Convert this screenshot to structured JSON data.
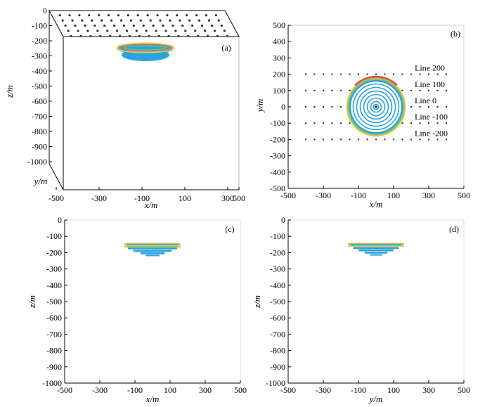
{
  "chart_data": [
    {
      "id": "a",
      "type": "scatter",
      "panel_label": "(a)",
      "description": "3D view: station grid on top surface, magnetized body near z=-200",
      "zlabel": "z/m",
      "xlabel": "x/m",
      "ylabel": "y/m",
      "z_ticks": [
        "0",
        "-100",
        "-200",
        "-300",
        "-400",
        "-500",
        "-600",
        "-700",
        "-800",
        "-900",
        "-1000"
      ],
      "x_ticks": [
        "-500",
        "-300",
        "-100",
        "100",
        "300",
        "500"
      ],
      "x_tick_positions": [
        -500,
        -300,
        -100,
        100,
        300,
        500
      ],
      "zlim": [
        -1000,
        0
      ],
      "body_depth_range": [
        -280,
        -150
      ],
      "station_rows": 5,
      "station_cols": 17
    },
    {
      "id": "b",
      "type": "scatter",
      "panel_label": "(b)",
      "description": "Plan view with survey lines and concentric body contours",
      "xlabel": "x/m",
      "ylabel": "y/m",
      "xlim": [
        -500,
        500
      ],
      "ylim": [
        -500,
        500
      ],
      "x_ticks": [
        "-500",
        "-300",
        "-100",
        "100",
        "300",
        "500"
      ],
      "x_tick_positions": [
        -500,
        -300,
        -100,
        100,
        300,
        500
      ],
      "y_ticks": [
        "500",
        "400",
        "300",
        "200",
        "100",
        "0",
        "-100",
        "-200",
        "-300",
        "-400",
        "-500"
      ],
      "y_tick_positions": [
        500,
        400,
        300,
        200,
        100,
        0,
        -100,
        -200,
        -300,
        -400,
        -500
      ],
      "lines": [
        {
          "name": "Line 200",
          "y": 200
        },
        {
          "name": "Line 100",
          "y": 100
        },
        {
          "name": "Line 0",
          "y": 0
        },
        {
          "name": "Line -100",
          "y": -100
        },
        {
          "name": "Line -200",
          "y": -200
        }
      ],
      "station_x_range": [
        -400,
        400
      ],
      "station_spacing": 50,
      "body_center": [
        0,
        0
      ],
      "body_radius": 170,
      "contour_radii": [
        15,
        30,
        50,
        70,
        90,
        110,
        130,
        150
      ]
    },
    {
      "id": "c",
      "type": "area",
      "panel_label": "(c)",
      "description": "Vertical section in x-z plane",
      "xlabel": "x/m",
      "ylabel": "z/m",
      "xlim": [
        -500,
        500
      ],
      "ylim": [
        -1000,
        0
      ],
      "x_ticks": [
        "-500",
        "-300",
        "-100",
        "100",
        "300",
        "500"
      ],
      "x_tick_positions": [
        -500,
        -300,
        -100,
        100,
        300,
        500
      ],
      "y_ticks": [
        "0",
        "-100",
        "-200",
        "-300",
        "-400",
        "-500",
        "-600",
        "-700",
        "-800",
        "-900",
        "-1000"
      ],
      "y_tick_positions": [
        0,
        -100,
        -200,
        -300,
        -400,
        -500,
        -600,
        -700,
        -800,
        -900,
        -1000
      ],
      "layers": [
        {
          "x": [
            -160,
            160
          ],
          "z": [
            -170,
            -140
          ],
          "color": "#e8c85a"
        },
        {
          "x": [
            -140,
            140
          ],
          "z": [
            -180,
            -168
          ],
          "color": "#29a3dc"
        },
        {
          "x": [
            -110,
            110
          ],
          "z": [
            -195,
            -183
          ],
          "color": "#29a3dc"
        },
        {
          "x": [
            -70,
            70
          ],
          "z": [
            -210,
            -198
          ],
          "color": "#29a3dc"
        },
        {
          "x": [
            -40,
            40
          ],
          "z": [
            -222,
            -213
          ],
          "color": "#29a3dc"
        }
      ]
    },
    {
      "id": "d",
      "type": "area",
      "panel_label": "(d)",
      "description": "Vertical section in y-z plane",
      "xlabel": "y/m",
      "ylabel": "z/m",
      "xlim": [
        -500,
        500
      ],
      "ylim": [
        -1000,
        0
      ],
      "x_ticks": [
        "-500",
        "-300",
        "-100",
        "100",
        "300",
        "500"
      ],
      "x_tick_positions": [
        -500,
        -300,
        -100,
        100,
        300,
        500
      ],
      "y_ticks": [
        "0",
        "-100",
        "-200",
        "-300",
        "-400",
        "-500",
        "-600",
        "-700",
        "-800",
        "-900",
        "-1000"
      ],
      "y_tick_positions": [
        0,
        -100,
        -200,
        -300,
        -400,
        -500,
        -600,
        -700,
        -800,
        -900,
        -1000
      ],
      "layers": [
        {
          "x": [
            -160,
            160
          ],
          "z": [
            -165,
            -140
          ],
          "color": "#e8c85a"
        },
        {
          "x": [
            -130,
            130
          ],
          "z": [
            -178,
            -166
          ],
          "color": "#29a3dc"
        },
        {
          "x": [
            -100,
            100
          ],
          "z": [
            -192,
            -180
          ],
          "color": "#29a3dc"
        },
        {
          "x": [
            -65,
            65
          ],
          "z": [
            -206,
            -195
          ],
          "color": "#29a3dc"
        },
        {
          "x": [
            -35,
            35
          ],
          "z": [
            -218,
            -209
          ],
          "color": "#29a3dc"
        }
      ]
    }
  ],
  "colors": {
    "body_blue": "#29a3dc",
    "body_yellow": "#e8c85a",
    "body_red": "#e0564a",
    "body_green": "#7fc46a",
    "station": "#333333",
    "axis": "#000000"
  }
}
